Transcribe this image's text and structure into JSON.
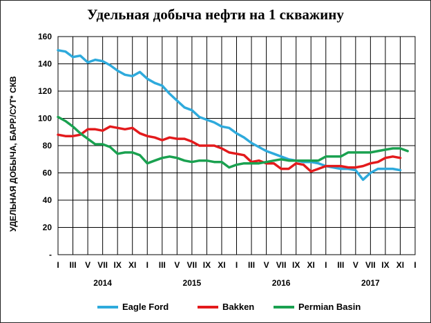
{
  "chart_data": {
    "type": "line",
    "title": "Удельная добыча нефти на 1 скважину",
    "ylabel": "УДЕЛЬНАЯ ДОБЫЧА, БАРР./СУТ* СКВ",
    "xlabel": "",
    "ylim": [
      0,
      160
    ],
    "yticks": [
      {
        "value": 0,
        "label": "-"
      },
      {
        "value": 20,
        "label": "20"
      },
      {
        "value": 40,
        "label": "40"
      },
      {
        "value": 60,
        "label": "60"
      },
      {
        "value": 80,
        "label": "80"
      },
      {
        "value": 100,
        "label": "100"
      },
      {
        "value": 120,
        "label": "120"
      },
      {
        "value": 140,
        "label": "140"
      },
      {
        "value": 160,
        "label": "160"
      }
    ],
    "grid": true,
    "legend_position": "bottom",
    "x_month_labels": [
      "I",
      "III",
      "V",
      "VII",
      "IX",
      "XI",
      "I",
      "III",
      "V",
      "VII",
      "IX",
      "XI",
      "I",
      "III",
      "V",
      "VII",
      "IX",
      "XI",
      "I",
      "III",
      "V",
      "VII",
      "IX",
      "XI",
      "I"
    ],
    "x_year_labels": [
      {
        "label": "2014",
        "month_index": 6
      },
      {
        "label": "2015",
        "month_index": 18
      },
      {
        "label": "2016",
        "month_index": 30
      },
      {
        "label": "2017",
        "month_index": 42
      }
    ],
    "series": [
      {
        "name": "Eagle Ford",
        "color": "#2eaadc",
        "values": [
          150,
          149,
          145,
          146,
          141,
          143,
          142,
          139,
          135,
          132,
          131,
          134,
          129,
          126,
          124,
          118,
          113,
          108,
          106,
          101,
          99,
          97,
          94,
          93,
          89,
          86,
          82,
          79,
          76,
          74,
          72,
          70,
          69,
          68,
          68,
          67,
          65,
          64,
          63,
          63,
          62,
          55,
          60,
          63,
          63,
          63,
          62
        ]
      },
      {
        "name": "Bakken",
        "color": "#e31a1c",
        "values": [
          88,
          87,
          87,
          88,
          92,
          92,
          91,
          94,
          93,
          92,
          93,
          89,
          87,
          86,
          84,
          86,
          85,
          85,
          83,
          80,
          80,
          80,
          78,
          75,
          74,
          73,
          68,
          69,
          67,
          67,
          63,
          63,
          67,
          66,
          61,
          63,
          65,
          65,
          65,
          64,
          64,
          65,
          67,
          68,
          71,
          72,
          71
        ]
      },
      {
        "name": "Permian Basin",
        "color": "#1aa150",
        "values": [
          101,
          98,
          94,
          89,
          85,
          81,
          81,
          79,
          74,
          75,
          75,
          73,
          67,
          69,
          71,
          72,
          71,
          69,
          68,
          69,
          69,
          68,
          68,
          64,
          66,
          67,
          67,
          67,
          68,
          69,
          70,
          69,
          69,
          69,
          69,
          69,
          72,
          72,
          72,
          75,
          75,
          75,
          75,
          76,
          77,
          78,
          78,
          76
        ]
      }
    ]
  }
}
